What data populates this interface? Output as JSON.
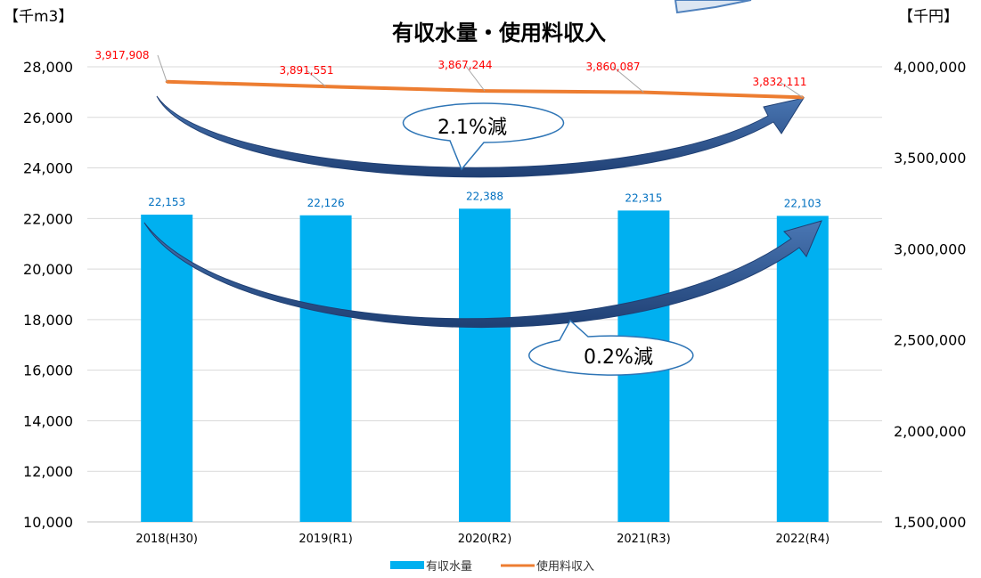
{
  "chart_data": {
    "type": "bar+line",
    "title": "有収水量・使用料収入",
    "categories": [
      "2018(H30)",
      "2019(R1)",
      "2020(R2)",
      "2021(R3)",
      "2022(R4)"
    ],
    "left_unit": "【千m3】",
    "right_unit": "【千円】",
    "y_left": {
      "min": 10000,
      "max": 28000,
      "step": 2000,
      "ticks": [
        "10,000",
        "12,000",
        "14,000",
        "16,000",
        "18,000",
        "20,000",
        "22,000",
        "24,000",
        "26,000",
        "28,000"
      ]
    },
    "y_right": {
      "min": 1500000,
      "max": 4000000,
      "ticks": [
        "1,500,000",
        "2,000,000",
        "2,500,000",
        "3,000,000",
        "3,500,000",
        "4,000,000"
      ]
    },
    "grid": true,
    "legend_position": "bottom",
    "series": [
      {
        "name": "有収水量",
        "type": "bar",
        "axis": "left",
        "color": "#00b0f0",
        "values": [
          22153,
          22126,
          22388,
          22315,
          22103
        ],
        "labels": [
          "22,153",
          "22,126",
          "22,388",
          "22,315",
          "22,103"
        ]
      },
      {
        "name": "使用料収入",
        "type": "line",
        "axis": "right",
        "color": "#ed7d31",
        "values": [
          3917908,
          3891551,
          3867244,
          3860087,
          3832111
        ],
        "labels": [
          "3,917,908",
          "3,891,551",
          "3,867,244",
          "3,860,087",
          "3,832,111"
        ]
      }
    ],
    "annotations": [
      {
        "text": "2.1%減",
        "refers_to": "使用料収入"
      },
      {
        "text": "0.2%減",
        "refers_to": "有収水量"
      }
    ]
  }
}
